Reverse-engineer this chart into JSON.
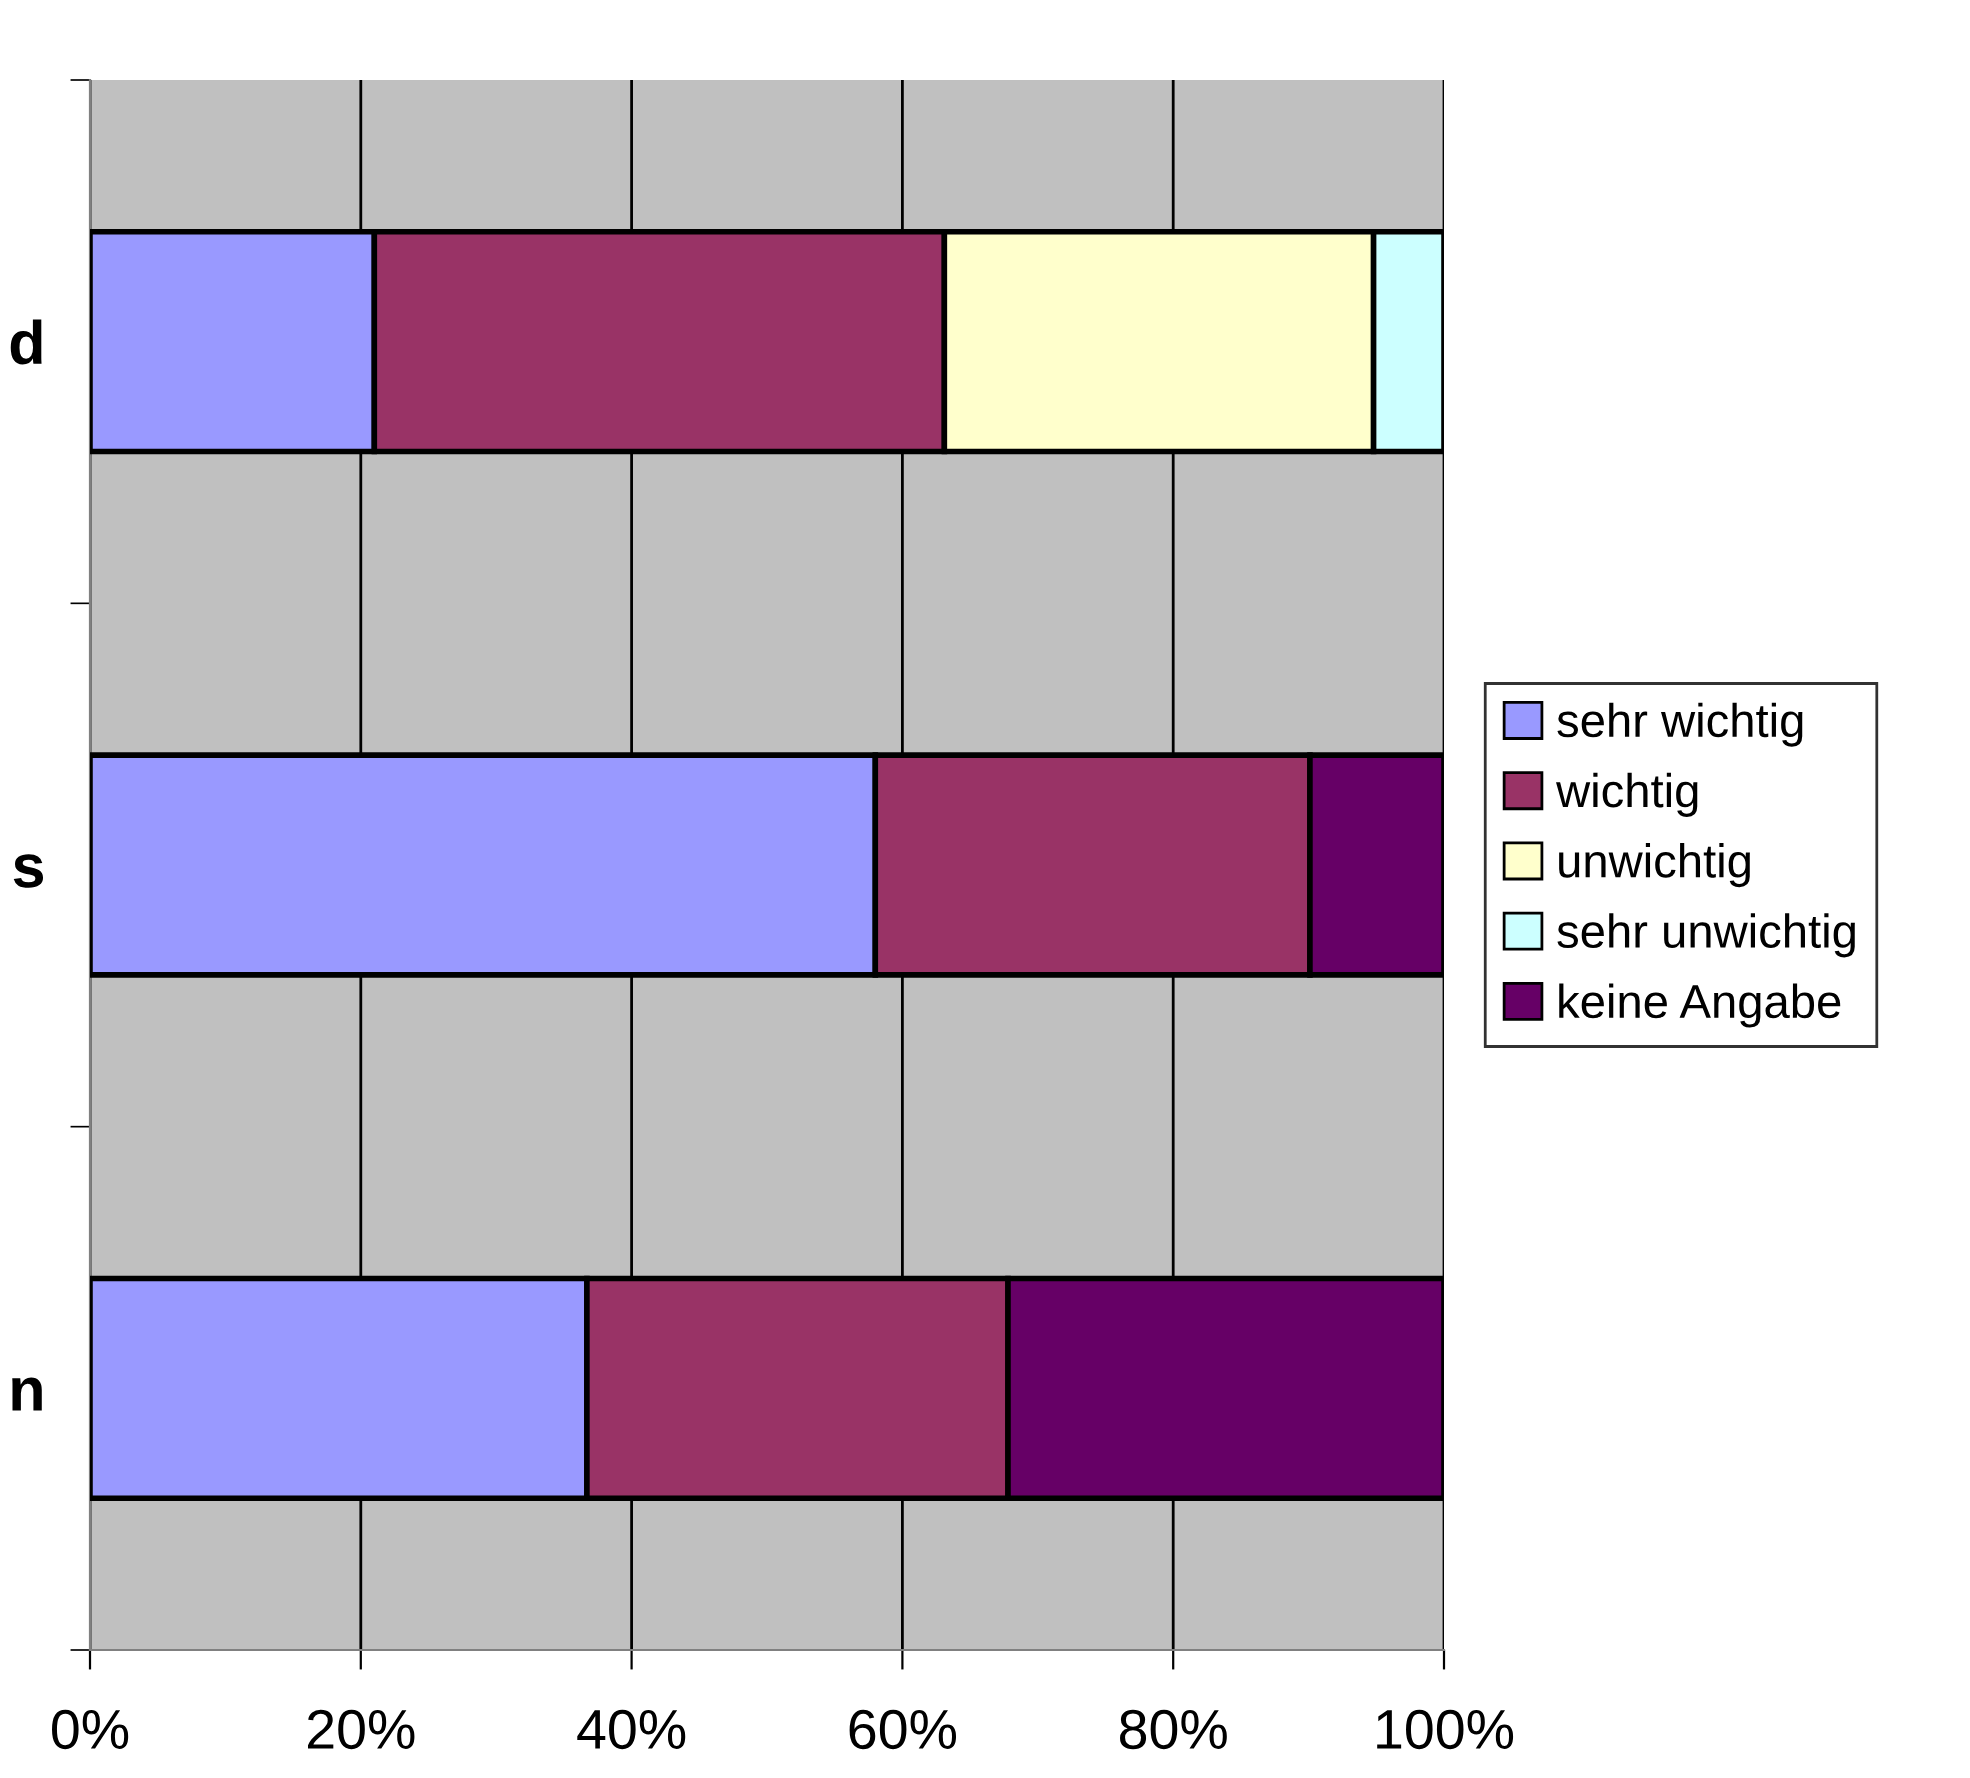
{
  "chart_data": {
    "type": "bar",
    "orientation": "horizontal",
    "stacked": true,
    "categories": [
      "d",
      "s",
      "n"
    ],
    "series": [
      {
        "name": "sehr wichtig",
        "color": "#9999ff",
        "values": [
          21.0,
          58.0,
          36.7
        ]
      },
      {
        "name": "wichtig",
        "color": "#993366",
        "values": [
          42.1,
          32.1,
          31.1
        ]
      },
      {
        "name": "unwichtig",
        "color": "#ffffcc",
        "values": [
          31.7,
          null,
          null
        ]
      },
      {
        "name": "sehr unwichtig",
        "color": "#ccffff",
        "values": [
          5.2,
          null,
          null
        ]
      },
      {
        "name": "keine Angabe",
        "color": "#660066",
        "values": [
          null,
          9.9,
          32.2
        ]
      }
    ],
    "xlim": [
      0,
      100
    ],
    "xticks": [
      {
        "value": 0,
        "label": "0%"
      },
      {
        "value": 20,
        "label": "20%"
      },
      {
        "value": 40,
        "label": "40%"
      },
      {
        "value": 60,
        "label": "60%"
      },
      {
        "value": 80,
        "label": "80%"
      },
      {
        "value": 100,
        "label": "100%"
      }
    ],
    "grid": "x",
    "legend": "right"
  }
}
